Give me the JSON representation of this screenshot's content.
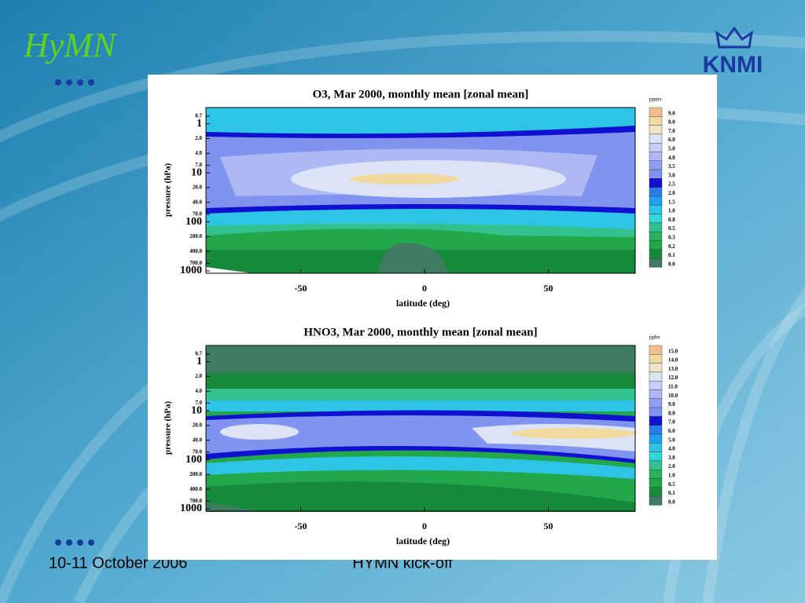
{
  "header": {
    "logo_left": "HyMN",
    "logo_right": "KNMI"
  },
  "footer": {
    "date": "10-11 October 2006",
    "event": "HYMN kick-off"
  },
  "panels": [
    {
      "title": "O3, Mar 2000, monthly mean [zonal mean]",
      "y_label": "pressure (hPa)",
      "x_label": "latitude (deg)",
      "y_ticks": [
        "0.7",
        "1",
        "2.0",
        "4.0",
        "7.0",
        "10",
        "20.0",
        "40.0",
        "70.0",
        "100",
        "200.0",
        "400.0",
        "700.0",
        "1000"
      ],
      "x_ticks": [
        "-50",
        "0",
        "50"
      ],
      "colorbar_unit": "ppmv",
      "colorbar_labels": [
        "9.0",
        "8.0",
        "7.0",
        "6.0",
        "5.0",
        "4.0",
        "3.5",
        "3.0",
        "2.5",
        "2.0",
        "1.5",
        "1.0",
        "0.8",
        "0.5",
        "0.3",
        "0.2",
        "0.1",
        "0.0"
      ]
    },
    {
      "title": "HNO3, Mar 2000, monthly mean [zonal mean]",
      "y_label": "pressure (hPa)",
      "x_label": "latitude (deg)",
      "y_ticks": [
        "0.7",
        "1",
        "2.0",
        "4.0",
        "7.0",
        "10",
        "20.0",
        "40.0",
        "70.0",
        "100",
        "200.0",
        "400.0",
        "700.0",
        "1000"
      ],
      "x_ticks": [
        "-50",
        "0",
        "50"
      ],
      "colorbar_unit": "ppbv",
      "colorbar_labels": [
        "15.0",
        "14.0",
        "13.0",
        "12.0",
        "11.0",
        "10.0",
        "9.0",
        "8.0",
        "7.0",
        "6.0",
        "5.0",
        "4.0",
        "3.0",
        "2.0",
        "1.0",
        "0.5",
        "0.1",
        "0.0"
      ]
    }
  ]
}
